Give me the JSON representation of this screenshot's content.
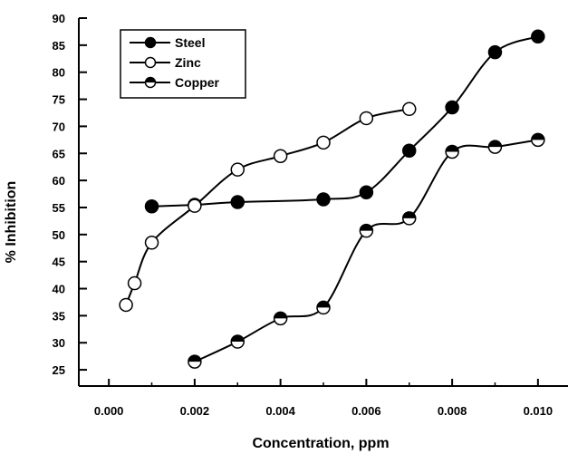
{
  "chart_data": {
    "type": "line",
    "xlabel": "Concentration, ppm",
    "ylabel": "% Inhibition",
    "xlim": [
      -0.0007,
      0.0107
    ],
    "ylim": [
      22,
      90
    ],
    "xticks": [
      0.0,
      0.002,
      0.004,
      0.006,
      0.008,
      0.01
    ],
    "xtick_labels": [
      "0.000",
      "0.002",
      "0.004",
      "0.006",
      "0.008",
      "0.010"
    ],
    "yticks": [
      25,
      30,
      35,
      40,
      45,
      50,
      55,
      60,
      65,
      70,
      75,
      80,
      85,
      90
    ],
    "ytick_labels": [
      "25",
      "30",
      "35",
      "40",
      "45",
      "50",
      "55",
      "60",
      "65",
      "70",
      "75",
      "80",
      "85",
      "90"
    ],
    "grid": false,
    "legend_position": "top-left",
    "series": [
      {
        "name": "Steel",
        "marker": "filled-circle",
        "x": [
          0.001,
          0.002,
          0.003,
          0.005,
          0.006,
          0.007,
          0.008,
          0.009,
          0.01
        ],
        "y": [
          55.2,
          55.5,
          56.0,
          56.5,
          57.8,
          65.5,
          73.5,
          83.7,
          86.6
        ]
      },
      {
        "name": "Zinc",
        "marker": "open-circle",
        "x": [
          0.0004,
          0.0006,
          0.001,
          0.002,
          0.003,
          0.004,
          0.005,
          0.006,
          0.007
        ],
        "y": [
          37.0,
          41.0,
          48.5,
          55.3,
          62.0,
          64.5,
          67.0,
          71.5,
          73.2
        ]
      },
      {
        "name": "Copper",
        "marker": "half-filled-circle",
        "x": [
          0.002,
          0.003,
          0.004,
          0.005,
          0.006,
          0.007,
          0.008,
          0.009,
          0.01
        ],
        "y": [
          26.5,
          30.2,
          34.5,
          36.5,
          50.7,
          53.0,
          65.3,
          66.2,
          67.5
        ]
      }
    ]
  }
}
